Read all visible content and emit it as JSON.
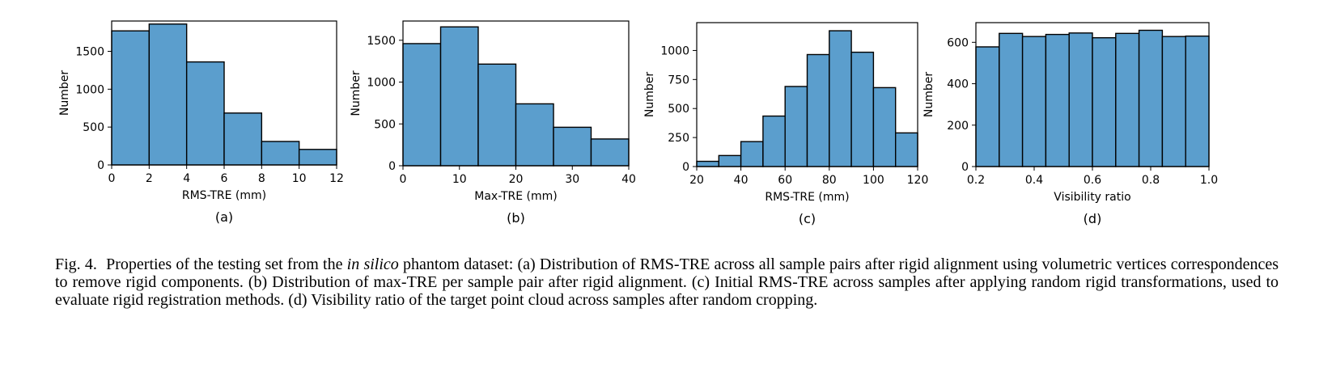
{
  "bar_color": "#5b9ecd",
  "edge_color": "#000000",
  "chart_data": [
    {
      "type": "histogram",
      "panel_label": "(a)",
      "xlabel": "RMS-TRE (mm)",
      "ylabel": "Number",
      "xlim": [
        0,
        12
      ],
      "ylim": [
        0,
        1900
      ],
      "xticks": [
        "0",
        "2",
        "4",
        "6",
        "8",
        "10",
        "12"
      ],
      "yticks": [
        "0",
        "500",
        "1000",
        "1500"
      ],
      "bins": [
        [
          0,
          2
        ],
        [
          2,
          4
        ],
        [
          4,
          6
        ],
        [
          6,
          8
        ],
        [
          8,
          10
        ],
        [
          10,
          12
        ]
      ],
      "values": [
        1770,
        1860,
        1360,
        685,
        310,
        205
      ]
    },
    {
      "type": "histogram",
      "panel_label": "(b)",
      "xlabel": "Max-TRE (mm)",
      "ylabel": "Number",
      "xlim": [
        0,
        40
      ],
      "ylim": [
        0,
        1730
      ],
      "xticks": [
        "0",
        "10",
        "20",
        "30",
        "40"
      ],
      "yticks": [
        "0",
        "500",
        "1000",
        "1500"
      ],
      "bins": [
        [
          0,
          6.67
        ],
        [
          6.67,
          13.33
        ],
        [
          13.33,
          20
        ],
        [
          20,
          26.67
        ],
        [
          26.67,
          33.33
        ],
        [
          33.33,
          40
        ]
      ],
      "values": [
        1460,
        1660,
        1215,
        740,
        460,
        320
      ]
    },
    {
      "type": "histogram",
      "panel_label": "(c)",
      "xlabel": "RMS-TRE (mm)",
      "ylabel": "Number",
      "xlim": [
        20,
        120
      ],
      "ylim": [
        0,
        1240
      ],
      "xticks": [
        "20",
        "40",
        "60",
        "80",
        "100",
        "120"
      ],
      "yticks": [
        "0",
        "250",
        "500",
        "750",
        "1000"
      ],
      "bins": [
        [
          20,
          30
        ],
        [
          30,
          40
        ],
        [
          40,
          50
        ],
        [
          50,
          60
        ],
        [
          60,
          70
        ],
        [
          70,
          80
        ],
        [
          80,
          90
        ],
        [
          90,
          100
        ],
        [
          100,
          110
        ],
        [
          110,
          120
        ]
      ],
      "values": [
        45,
        95,
        215,
        435,
        690,
        965,
        1170,
        985,
        680,
        290
      ]
    },
    {
      "type": "histogram",
      "panel_label": "(d)",
      "xlabel": "Visibility ratio",
      "ylabel": "Number",
      "xlim": [
        0.2,
        1.0
      ],
      "ylim": [
        0,
        695
      ],
      "xticks": [
        "0.2",
        "0.4",
        "0.6",
        "0.8",
        "1.0"
      ],
      "yticks": [
        "0",
        "200",
        "400",
        "600"
      ],
      "bins": [
        [
          0.2,
          0.28
        ],
        [
          0.28,
          0.36
        ],
        [
          0.36,
          0.44
        ],
        [
          0.44,
          0.52
        ],
        [
          0.52,
          0.6
        ],
        [
          0.6,
          0.68
        ],
        [
          0.68,
          0.76
        ],
        [
          0.76,
          0.84
        ],
        [
          0.84,
          0.92
        ],
        [
          0.92,
          1.0
        ]
      ],
      "values": [
        578,
        643,
        628,
        638,
        645,
        622,
        643,
        658,
        628,
        630
      ]
    }
  ],
  "caption": {
    "label": "Fig. 4.",
    "text_before": "Properties of the testing set from the",
    "italic": "in silico",
    "text_after": "phantom dataset: (a) Distribution of RMS-TRE across all sample pairs after rigid alignment using volumetric vertices correspondences to remove rigid components. (b) Distribution of max-TRE per sample pair after rigid alignment. (c) Initial RMS-TRE across samples after applying random rigid transformations, used to evaluate rigid registration methods. (d) Visibility ratio of the target point cloud across samples after random cropping."
  }
}
